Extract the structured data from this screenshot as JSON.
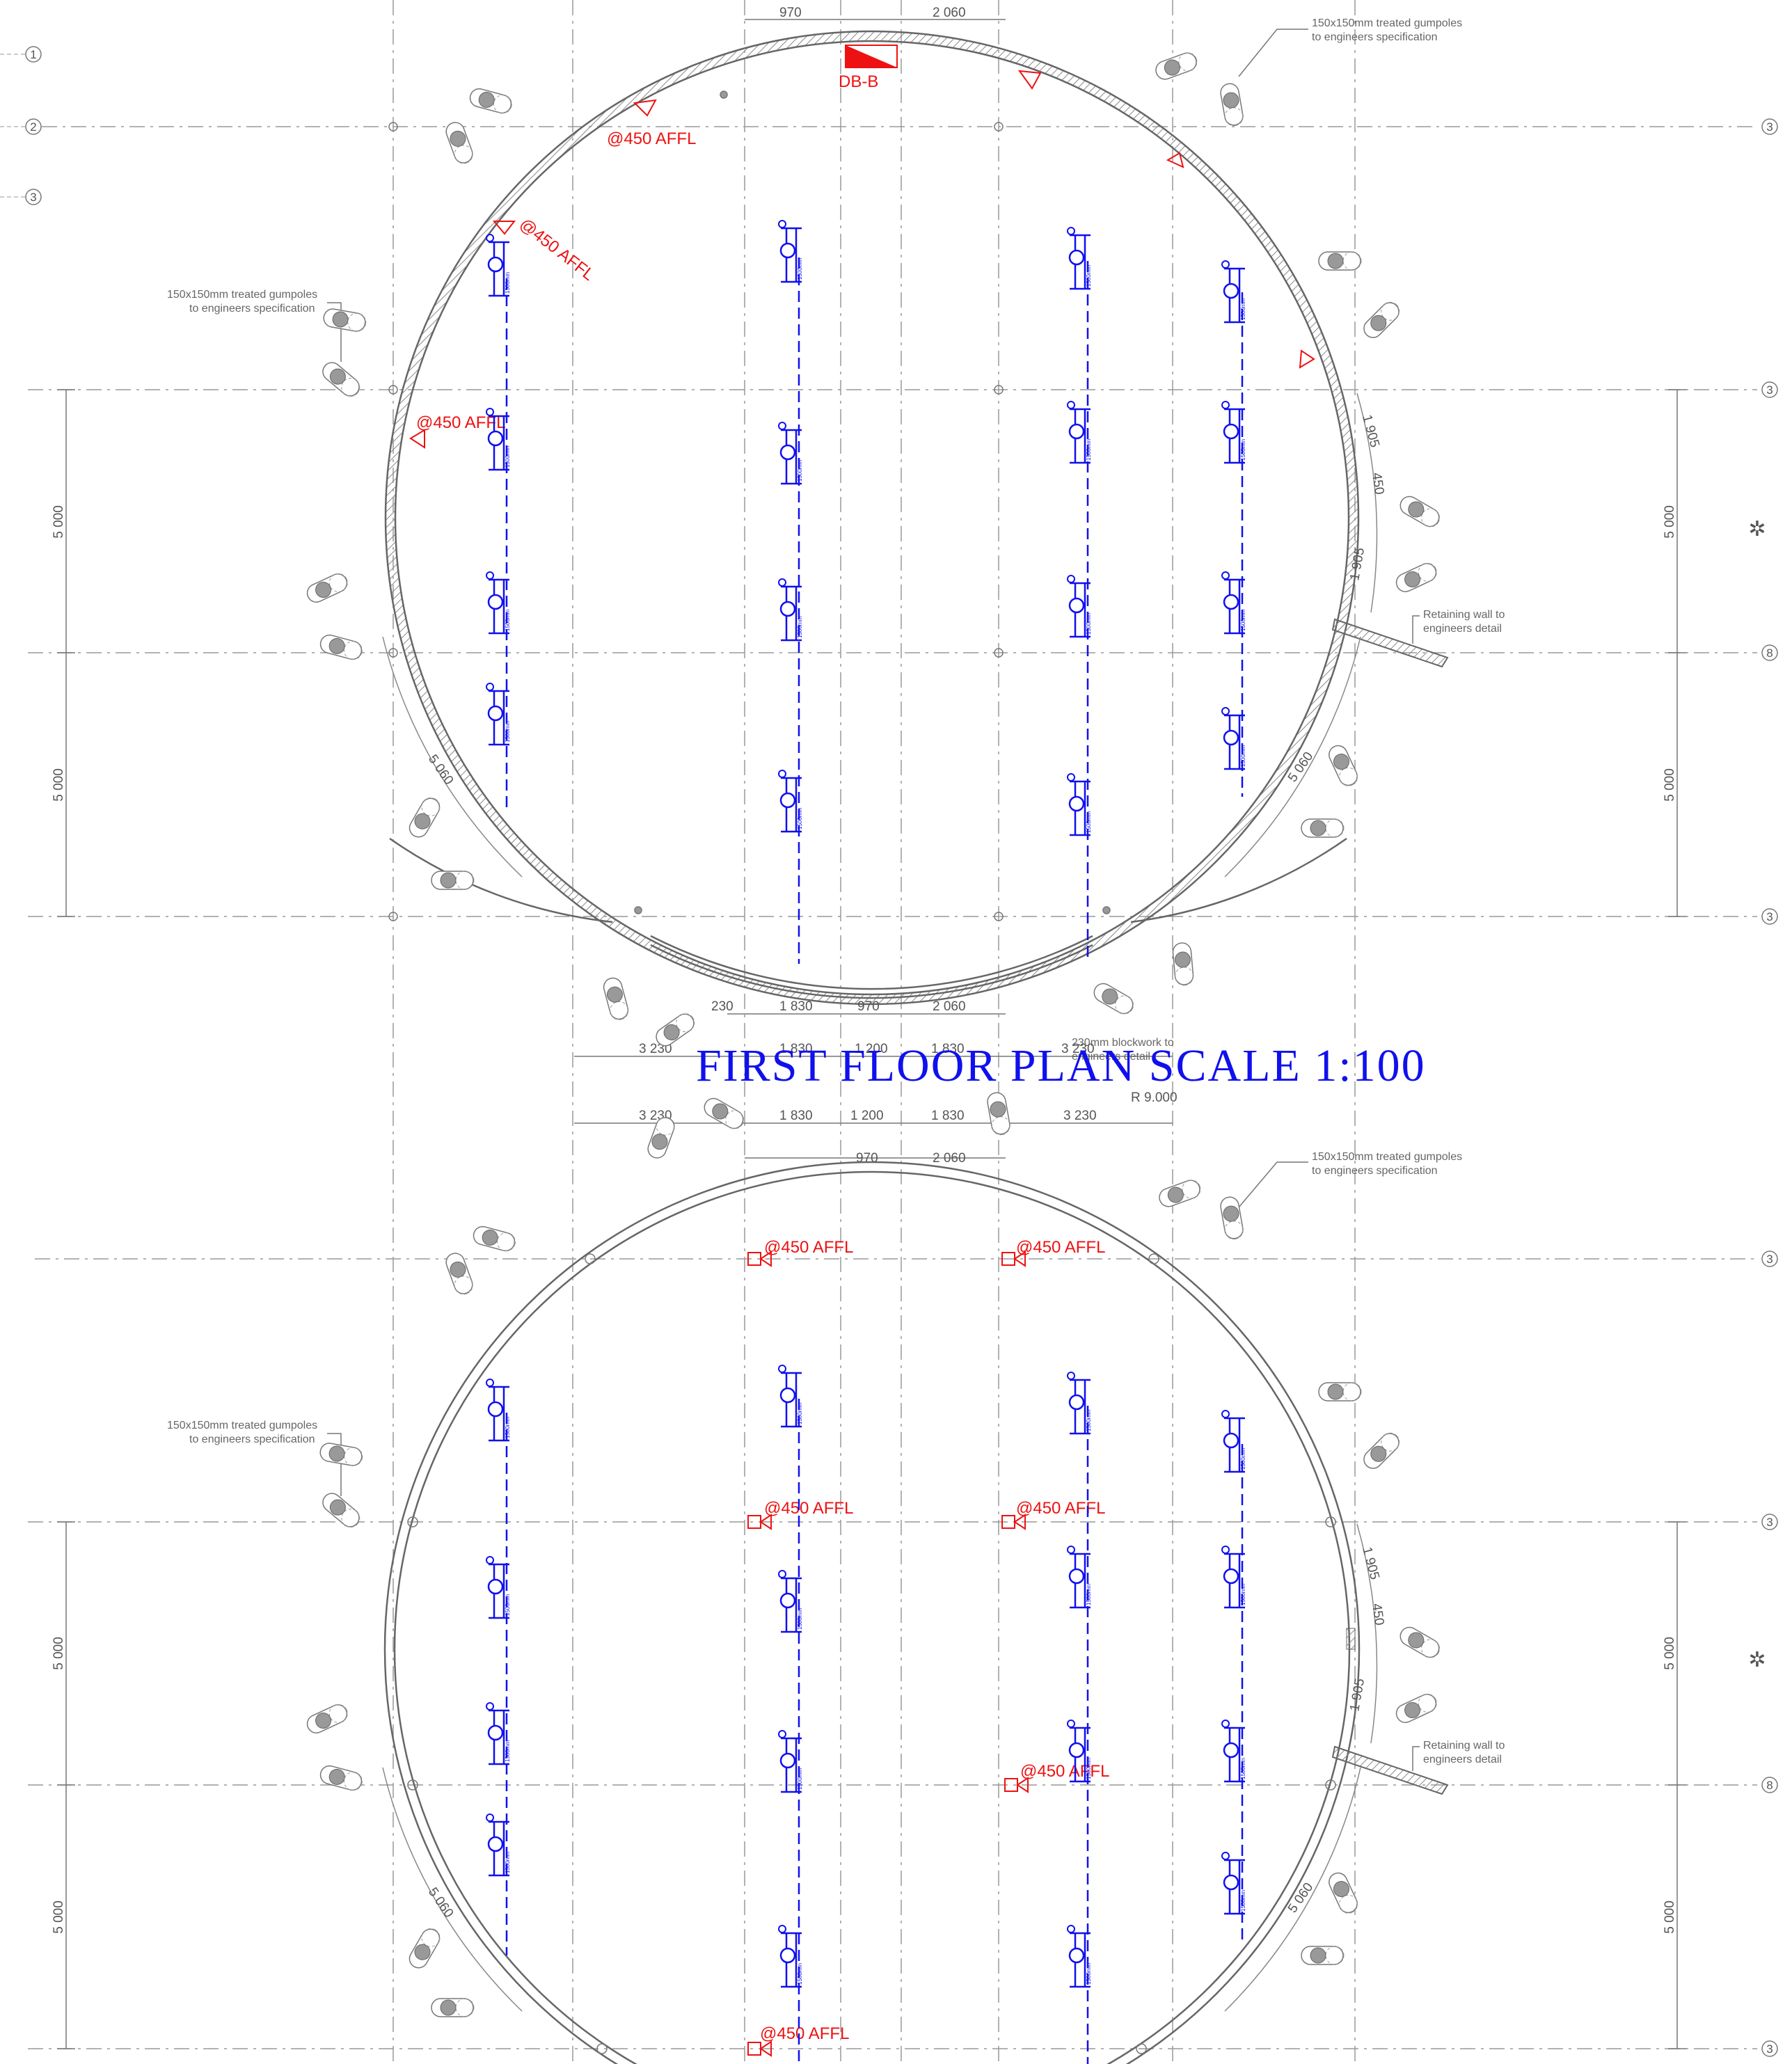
{
  "title": "FIRST FLOOR   PLAN    SCALE    1:100",
  "db_label": "DB-B",
  "affl_label": "@450  AFFL",
  "radius_label": "R 9.000",
  "gumpole_note": [
    "150x150mm treated gumpoles",
    "to engineers specification"
  ],
  "retaining_note": [
    "Retaining wall to",
    "engineers detail"
  ],
  "blockwork_note": [
    "230mm blockwork to",
    "engineers detail"
  ],
  "grid_labels_left": [
    "1",
    "2",
    "3"
  ],
  "grid_labels_right": [
    "3",
    "3",
    "8",
    "3",
    "3",
    "3",
    "8",
    "3"
  ],
  "dims": {
    "top": [
      "970",
      "2 060"
    ],
    "mid_upper": [
      "230",
      "1 830",
      "970",
      "2 060"
    ],
    "mid_row": [
      "3 230",
      "1 830",
      "1 200",
      "1 830",
      "3 230"
    ],
    "lower_row": [
      "3 230",
      "1 830",
      "1 200",
      "1 830",
      "3 230"
    ],
    "lower_top": [
      "970",
      "2 060"
    ],
    "arc": "5 060",
    "side": [
      "1 905",
      "450",
      "1 905"
    ],
    "vertical": "5 000"
  },
  "fixture_text": "1500mm",
  "colors": {
    "blue": "#1010ee",
    "red": "#ee1111",
    "grey": "#888888",
    "wall": "#777777"
  }
}
